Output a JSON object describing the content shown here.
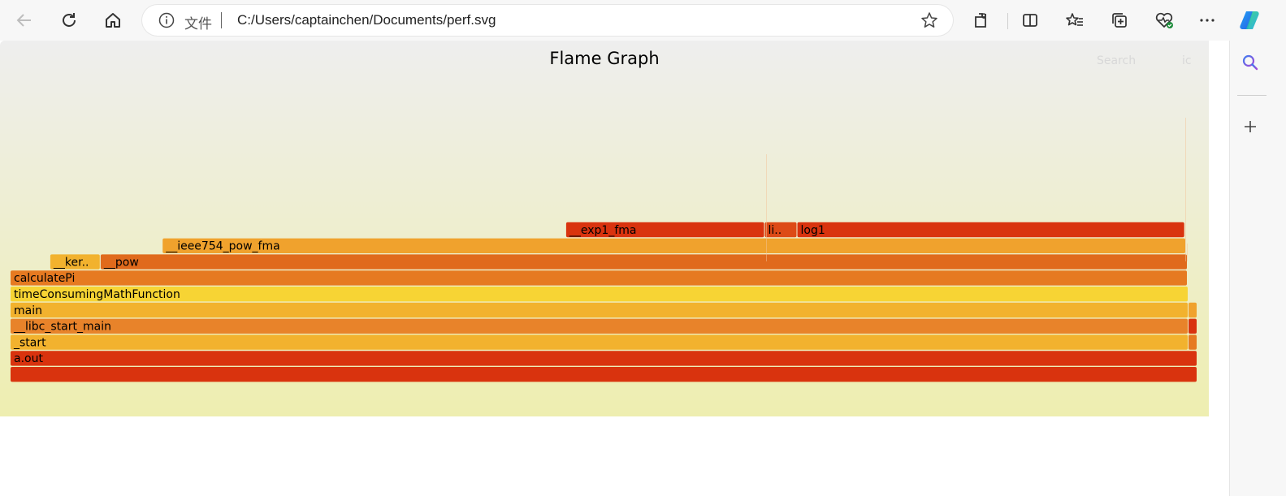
{
  "browser": {
    "address_label": "文件",
    "url": "C:/Users/captainchen/Documents/perf.svg",
    "icons": [
      "back-icon",
      "refresh-icon",
      "home-icon",
      "info-icon",
      "favorite-star-icon",
      "extensions-icon",
      "split-screen-icon",
      "favorites-icon",
      "collections-icon",
      "browser-essentials-icon",
      "more-icon",
      "copilot-icon"
    ]
  },
  "sidebar": {
    "icons": [
      "search-icon",
      "add-icon"
    ]
  },
  "flamegraph": {
    "title": "Flame Graph",
    "search_label": "Search",
    "ic_label": "ic",
    "colors": {
      "red": "#d9330e",
      "orange": "#e67a21",
      "gold": "#f0a22d",
      "yellow": "#f7d434",
      "amber": "#f2b22e"
    },
    "frames": [
      {
        "label": "",
        "depth": 0,
        "start": 0.0,
        "end": 1.0,
        "color": "#d9330e"
      },
      {
        "label": "a.out",
        "depth": 1,
        "start": 0.0,
        "end": 1.0,
        "color": "#d9330e"
      },
      {
        "label": "_start",
        "depth": 2,
        "start": 0.0,
        "end": 0.9925,
        "color": "#f2b22e"
      },
      {
        "label": "",
        "depth": 2,
        "start": 0.9925,
        "end": 1.0,
        "color": "#e67a21"
      },
      {
        "label": "__libc_start_main",
        "depth": 3,
        "start": 0.0,
        "end": 0.9925,
        "color": "#e8832a"
      },
      {
        "label": "",
        "depth": 3,
        "start": 0.9925,
        "end": 1.0,
        "color": "#d9330e"
      },
      {
        "label": "main",
        "depth": 4,
        "start": 0.0,
        "end": 0.9925,
        "color": "#f2b22e"
      },
      {
        "label": "",
        "depth": 4,
        "start": 0.9925,
        "end": 1.0,
        "color": "#f0a22d"
      },
      {
        "label": "timeConsumingMathFunction",
        "depth": 5,
        "start": 0.0,
        "end": 0.9925,
        "color": "#f7d434"
      },
      {
        "label": "calculatePi",
        "depth": 6,
        "start": 0.0,
        "end": 0.9918,
        "color": "#e67a21"
      },
      {
        "label": "__ker..",
        "depth": 7,
        "start": 0.0335,
        "end": 0.0759,
        "color": "#f2b22e"
      },
      {
        "label": "__pow",
        "depth": 7,
        "start": 0.0759,
        "end": 0.9918,
        "color": "#e06a1c"
      },
      {
        "label": "__ieee754_pow_fma",
        "depth": 8,
        "start": 0.1281,
        "end": 0.9904,
        "color": "#f0a22d"
      },
      {
        "label": "__exp1_fma",
        "depth": 9,
        "start": 0.4681,
        "end": 0.6355,
        "color": "#d9330e"
      },
      {
        "label": "li..",
        "depth": 9,
        "start": 0.6355,
        "end": 0.6629,
        "color": "#dd4a16"
      },
      {
        "label": "log1",
        "depth": 9,
        "start": 0.6629,
        "end": 0.9895,
        "color": "#d9330e"
      }
    ]
  }
}
